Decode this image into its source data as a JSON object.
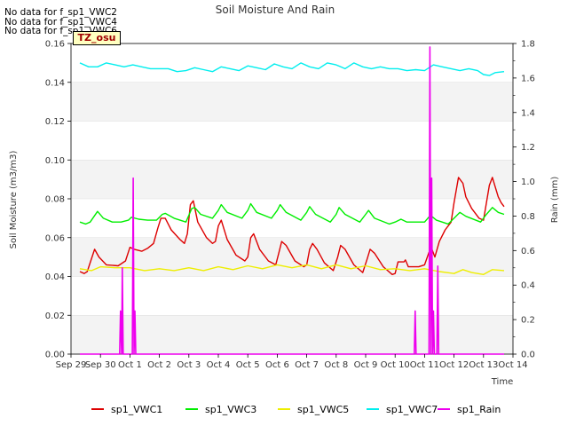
{
  "chart_data": {
    "type": "line",
    "title": "Soil Moisture And Rain",
    "xlabel": "Time",
    "ylabel_left": "Soil Moisture (m3/m3)",
    "ylabel_right": "Rain (mm)",
    "x_ticks": [
      "Sep 29",
      "Sep 30",
      "Oct 1",
      "Oct 2",
      "Oct 3",
      "Oct 4",
      "Oct 5",
      "Oct 6",
      "Oct 7",
      "Oct 8",
      "Oct 9",
      "Oct 10",
      "Oct 11",
      "Oct 12",
      "Oct 13",
      "Oct 14"
    ],
    "xlim": [
      0,
      15
    ],
    "ylim_left": [
      0.0,
      0.16
    ],
    "ylim_right": [
      0.0,
      1.8
    ],
    "y_ticks_left": [
      "0.00",
      "0.02",
      "0.04",
      "0.06",
      "0.08",
      "0.10",
      "0.12",
      "0.14",
      "0.16"
    ],
    "y_ticks_right": [
      "0.0",
      "0.2",
      "0.4",
      "0.6",
      "0.8",
      "1.0",
      "1.2",
      "1.4",
      "1.6",
      "1.8"
    ],
    "grid": "horizontal bands",
    "legend_position": "bottom",
    "series": [
      {
        "name": "sp1_VWC1",
        "color": "#dd0000",
        "axis": "left",
        "points": [
          [
            0.3,
            0.0425
          ],
          [
            0.45,
            0.0415
          ],
          [
            0.55,
            0.0425
          ],
          [
            0.8,
            0.054
          ],
          [
            0.95,
            0.05
          ],
          [
            1.2,
            0.046
          ],
          [
            1.6,
            0.0455
          ],
          [
            1.85,
            0.048
          ],
          [
            2.0,
            0.055
          ],
          [
            2.15,
            0.054
          ],
          [
            2.4,
            0.053
          ],
          [
            2.6,
            0.0545
          ],
          [
            2.8,
            0.057
          ],
          [
            2.95,
            0.065
          ],
          [
            3.05,
            0.07
          ],
          [
            3.2,
            0.07
          ],
          [
            3.4,
            0.064
          ],
          [
            3.7,
            0.059
          ],
          [
            3.85,
            0.057
          ],
          [
            3.95,
            0.062
          ],
          [
            4.05,
            0.077
          ],
          [
            4.15,
            0.079
          ],
          [
            4.3,
            0.068
          ],
          [
            4.6,
            0.06
          ],
          [
            4.8,
            0.057
          ],
          [
            4.9,
            0.058
          ],
          [
            5.0,
            0.066
          ],
          [
            5.1,
            0.069
          ],
          [
            5.3,
            0.059
          ],
          [
            5.6,
            0.051
          ],
          [
            5.9,
            0.048
          ],
          [
            6.0,
            0.05
          ],
          [
            6.1,
            0.06
          ],
          [
            6.2,
            0.062
          ],
          [
            6.4,
            0.054
          ],
          [
            6.7,
            0.048
          ],
          [
            6.95,
            0.046
          ],
          [
            7.05,
            0.052
          ],
          [
            7.15,
            0.058
          ],
          [
            7.3,
            0.056
          ],
          [
            7.6,
            0.048
          ],
          [
            7.9,
            0.045
          ],
          [
            8.0,
            0.046
          ],
          [
            8.1,
            0.054
          ],
          [
            8.2,
            0.057
          ],
          [
            8.35,
            0.054
          ],
          [
            8.6,
            0.047
          ],
          [
            8.9,
            0.043
          ],
          [
            9.05,
            0.05
          ],
          [
            9.15,
            0.056
          ],
          [
            9.3,
            0.054
          ],
          [
            9.6,
            0.046
          ],
          [
            9.9,
            0.042
          ],
          [
            10.05,
            0.049
          ],
          [
            10.15,
            0.054
          ],
          [
            10.3,
            0.052
          ],
          [
            10.6,
            0.045
          ],
          [
            10.9,
            0.041
          ],
          [
            11.0,
            0.0415
          ],
          [
            11.1,
            0.0475
          ],
          [
            11.3,
            0.0475
          ],
          [
            11.35,
            0.0485
          ],
          [
            11.45,
            0.045
          ],
          [
            11.8,
            0.045
          ],
          [
            12.0,
            0.046
          ],
          [
            12.15,
            0.0525
          ],
          [
            12.25,
            0.054
          ],
          [
            12.35,
            0.05
          ],
          [
            12.5,
            0.058
          ],
          [
            12.7,
            0.064
          ],
          [
            12.9,
            0.068
          ],
          [
            13.0,
            0.078
          ],
          [
            13.15,
            0.091
          ],
          [
            13.3,
            0.088
          ],
          [
            13.4,
            0.081
          ],
          [
            13.6,
            0.075
          ],
          [
            13.85,
            0.07
          ],
          [
            14.0,
            0.069
          ],
          [
            14.1,
            0.078
          ],
          [
            14.2,
            0.087
          ],
          [
            14.3,
            0.091
          ],
          [
            14.4,
            0.086
          ],
          [
            14.5,
            0.081
          ],
          [
            14.6,
            0.078
          ],
          [
            14.7,
            0.076
          ]
        ]
      },
      {
        "name": "sp1_VWC3",
        "color": "#00ee00",
        "axis": "left",
        "points": [
          [
            0.3,
            0.068
          ],
          [
            0.5,
            0.067
          ],
          [
            0.65,
            0.068
          ],
          [
            0.9,
            0.0735
          ],
          [
            1.1,
            0.07
          ],
          [
            1.4,
            0.068
          ],
          [
            1.7,
            0.068
          ],
          [
            1.95,
            0.069
          ],
          [
            2.05,
            0.0705
          ],
          [
            2.3,
            0.0695
          ],
          [
            2.6,
            0.069
          ],
          [
            2.9,
            0.069
          ],
          [
            3.1,
            0.072
          ],
          [
            3.2,
            0.0725
          ],
          [
            3.5,
            0.07
          ],
          [
            3.9,
            0.068
          ],
          [
            4.1,
            0.075
          ],
          [
            4.2,
            0.0755
          ],
          [
            4.4,
            0.072
          ],
          [
            4.8,
            0.07
          ],
          [
            5.0,
            0.074
          ],
          [
            5.1,
            0.077
          ],
          [
            5.3,
            0.073
          ],
          [
            5.8,
            0.07
          ],
          [
            6.0,
            0.074
          ],
          [
            6.1,
            0.0775
          ],
          [
            6.3,
            0.073
          ],
          [
            6.8,
            0.07
          ],
          [
            7.0,
            0.074
          ],
          [
            7.1,
            0.077
          ],
          [
            7.3,
            0.073
          ],
          [
            7.8,
            0.069
          ],
          [
            8.0,
            0.073
          ],
          [
            8.1,
            0.076
          ],
          [
            8.3,
            0.072
          ],
          [
            8.8,
            0.068
          ],
          [
            9.0,
            0.072
          ],
          [
            9.1,
            0.0755
          ],
          [
            9.3,
            0.072
          ],
          [
            9.8,
            0.068
          ],
          [
            10.0,
            0.072
          ],
          [
            10.1,
            0.074
          ],
          [
            10.3,
            0.07
          ],
          [
            10.8,
            0.067
          ],
          [
            11.0,
            0.068
          ],
          [
            11.2,
            0.0695
          ],
          [
            11.4,
            0.068
          ],
          [
            11.8,
            0.068
          ],
          [
            12.0,
            0.068
          ],
          [
            12.2,
            0.0715
          ],
          [
            12.4,
            0.069
          ],
          [
            12.8,
            0.067
          ],
          [
            13.0,
            0.07
          ],
          [
            13.2,
            0.073
          ],
          [
            13.4,
            0.071
          ],
          [
            13.9,
            0.068
          ],
          [
            14.1,
            0.072
          ],
          [
            14.3,
            0.0755
          ],
          [
            14.5,
            0.073
          ],
          [
            14.7,
            0.072
          ]
        ]
      },
      {
        "name": "sp1_VWC5",
        "color": "#eeee00",
        "axis": "left",
        "points": [
          [
            0.3,
            0.044
          ],
          [
            0.7,
            0.043
          ],
          [
            1.0,
            0.045
          ],
          [
            1.5,
            0.0445
          ],
          [
            2.0,
            0.0445
          ],
          [
            2.5,
            0.043
          ],
          [
            3.0,
            0.044
          ],
          [
            3.5,
            0.043
          ],
          [
            4.0,
            0.0445
          ],
          [
            4.5,
            0.043
          ],
          [
            5.0,
            0.045
          ],
          [
            5.5,
            0.0435
          ],
          [
            6.0,
            0.0455
          ],
          [
            6.5,
            0.044
          ],
          [
            7.0,
            0.046
          ],
          [
            7.5,
            0.0445
          ],
          [
            8.0,
            0.046
          ],
          [
            8.5,
            0.044
          ],
          [
            9.0,
            0.046
          ],
          [
            9.5,
            0.044
          ],
          [
            10.0,
            0.0455
          ],
          [
            10.5,
            0.0435
          ],
          [
            11.0,
            0.044
          ],
          [
            11.5,
            0.043
          ],
          [
            12.0,
            0.044
          ],
          [
            12.5,
            0.0425
          ],
          [
            13.0,
            0.0415
          ],
          [
            13.3,
            0.0435
          ],
          [
            13.6,
            0.042
          ],
          [
            14.0,
            0.041
          ],
          [
            14.3,
            0.0435
          ],
          [
            14.7,
            0.043
          ]
        ]
      },
      {
        "name": "sp1_VWC7",
        "color": "#00eeee",
        "axis": "left",
        "points": [
          [
            0.3,
            0.15
          ],
          [
            0.6,
            0.148
          ],
          [
            0.9,
            0.148
          ],
          [
            1.2,
            0.15
          ],
          [
            1.5,
            0.149
          ],
          [
            1.8,
            0.148
          ],
          [
            2.1,
            0.149
          ],
          [
            2.4,
            0.148
          ],
          [
            2.7,
            0.147
          ],
          [
            3.0,
            0.147
          ],
          [
            3.3,
            0.147
          ],
          [
            3.6,
            0.1455
          ],
          [
            3.9,
            0.146
          ],
          [
            4.2,
            0.1475
          ],
          [
            4.5,
            0.1465
          ],
          [
            4.8,
            0.1455
          ],
          [
            5.1,
            0.148
          ],
          [
            5.4,
            0.147
          ],
          [
            5.7,
            0.146
          ],
          [
            6.0,
            0.1485
          ],
          [
            6.3,
            0.1475
          ],
          [
            6.6,
            0.1465
          ],
          [
            6.9,
            0.1495
          ],
          [
            7.2,
            0.148
          ],
          [
            7.5,
            0.147
          ],
          [
            7.8,
            0.15
          ],
          [
            8.1,
            0.148
          ],
          [
            8.4,
            0.147
          ],
          [
            8.7,
            0.15
          ],
          [
            9.0,
            0.149
          ],
          [
            9.3,
            0.147
          ],
          [
            9.6,
            0.15
          ],
          [
            9.9,
            0.148
          ],
          [
            10.2,
            0.147
          ],
          [
            10.5,
            0.148
          ],
          [
            10.8,
            0.147
          ],
          [
            11.1,
            0.147
          ],
          [
            11.4,
            0.146
          ],
          [
            11.7,
            0.1465
          ],
          [
            12.0,
            0.146
          ],
          [
            12.3,
            0.149
          ],
          [
            12.6,
            0.148
          ],
          [
            12.9,
            0.147
          ],
          [
            13.2,
            0.146
          ],
          [
            13.5,
            0.147
          ],
          [
            13.8,
            0.146
          ],
          [
            14.0,
            0.144
          ],
          [
            14.2,
            0.1435
          ],
          [
            14.4,
            0.145
          ],
          [
            14.7,
            0.1455
          ]
        ]
      },
      {
        "name": "sp1_Rain",
        "color": "#ee00ee",
        "axis": "right",
        "points": [
          [
            0.3,
            0.0
          ],
          [
            1.65,
            0.0
          ],
          [
            1.68,
            0.25
          ],
          [
            1.72,
            0.0
          ],
          [
            1.74,
            0.5
          ],
          [
            1.77,
            0.0
          ],
          [
            2.08,
            0.0
          ],
          [
            2.11,
            1.02
          ],
          [
            2.14,
            0.0
          ],
          [
            2.17,
            0.25
          ],
          [
            2.2,
            0.0
          ],
          [
            11.65,
            0.0
          ],
          [
            11.68,
            0.25
          ],
          [
            11.71,
            0.0
          ],
          [
            12.15,
            0.0
          ],
          [
            12.18,
            1.78
          ],
          [
            12.21,
            0.0
          ],
          [
            12.24,
            1.02
          ],
          [
            12.27,
            0.0
          ],
          [
            12.3,
            0.25
          ],
          [
            12.33,
            0.0
          ],
          [
            12.42,
            0.0
          ],
          [
            12.45,
            0.51
          ],
          [
            12.48,
            0.0
          ],
          [
            14.7,
            0.0
          ]
        ]
      }
    ],
    "no_data_messages": [
      "No data for f_sp1_VWC2",
      "No data for f_sp1_VWC4",
      "No data for f_sp1_VWC6"
    ],
    "badge": "TZ_osu"
  }
}
